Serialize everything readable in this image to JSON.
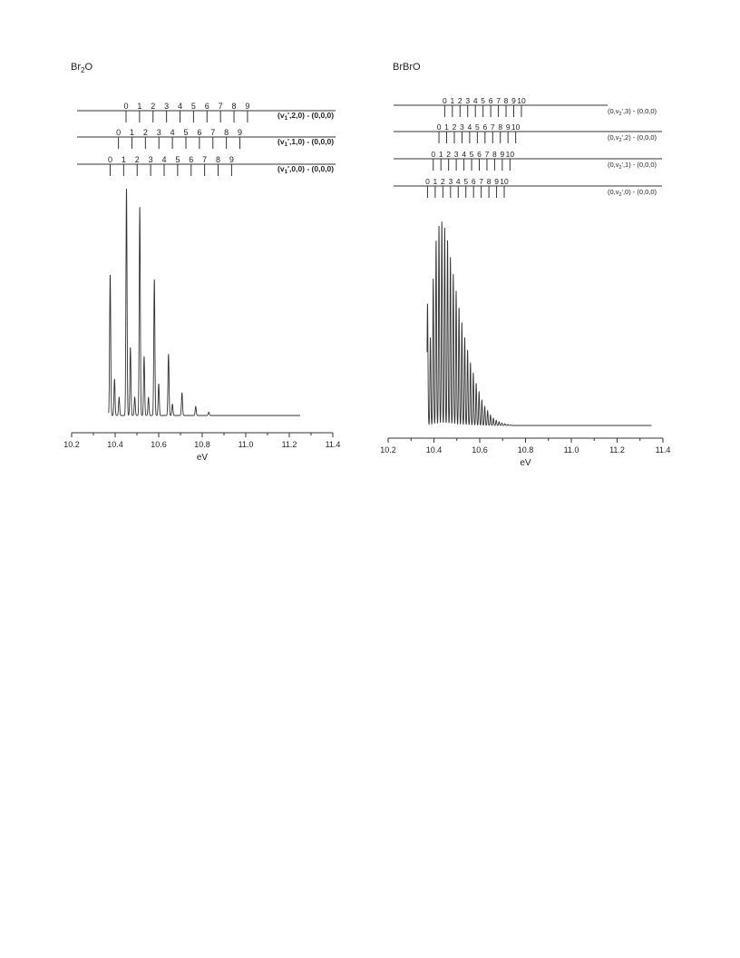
{
  "chart_data": [
    {
      "type": "line",
      "title": "Br2O",
      "title_parts": {
        "base": "Br",
        "sub": "2",
        "rest": "O"
      },
      "xlabel": "eV",
      "xlim": [
        10.2,
        11.4
      ],
      "xticks": [
        "10.2",
        "10.4",
        "10.6",
        "10.8",
        "11.0",
        "11.2",
        "11.4"
      ],
      "xtick_values": [
        10.2,
        10.4,
        10.6,
        10.8,
        11.0,
        11.2,
        11.4
      ],
      "grid": false,
      "baseline": 0.02,
      "spectrum_range": [
        10.37,
        11.25
      ],
      "peaks": [
        {
          "x": 10.377,
          "y": 0.62,
          "w": 0.0035
        },
        {
          "x": 10.397,
          "y": 0.16,
          "w": 0.0035
        },
        {
          "x": 10.418,
          "y": 0.08,
          "w": 0.0035
        },
        {
          "x": 10.452,
          "y": 1.0,
          "w": 0.0035
        },
        {
          "x": 10.47,
          "y": 0.3,
          "w": 0.0035
        },
        {
          "x": 10.49,
          "y": 0.08,
          "w": 0.0035
        },
        {
          "x": 10.513,
          "y": 0.92,
          "w": 0.0035
        },
        {
          "x": 10.533,
          "y": 0.26,
          "w": 0.0035
        },
        {
          "x": 10.553,
          "y": 0.08,
          "w": 0.0035
        },
        {
          "x": 10.58,
          "y": 0.6,
          "w": 0.0035
        },
        {
          "x": 10.6,
          "y": 0.14,
          "w": 0.0035
        },
        {
          "x": 10.645,
          "y": 0.27,
          "w": 0.0035
        },
        {
          "x": 10.663,
          "y": 0.05,
          "w": 0.0035
        },
        {
          "x": 10.707,
          "y": 0.1,
          "w": 0.0035
        },
        {
          "x": 10.77,
          "y": 0.04,
          "w": 0.0035
        },
        {
          "x": 10.83,
          "y": 0.015,
          "w": 0.0035
        }
      ],
      "progressions": [
        {
          "label": "(v1',2,0) - (0,0,0)",
          "tick_labels": [
            "0",
            "1",
            "2",
            "3",
            "4",
            "5",
            "6",
            "7",
            "8",
            "9"
          ],
          "start": 10.45,
          "step": 0.062
        },
        {
          "label": "(v1',1,0) - (0,0,0)",
          "tick_labels": [
            "0",
            "1",
            "2",
            "3",
            "4",
            "5",
            "6",
            "7",
            "8",
            "9"
          ],
          "start": 10.415,
          "step": 0.062
        },
        {
          "label": "(v1',0,0) - (0,0,0)",
          "tick_labels": [
            "0",
            "1",
            "2",
            "3",
            "4",
            "5",
            "6",
            "7",
            "8",
            "9"
          ],
          "start": 10.377,
          "step": 0.062
        }
      ]
    },
    {
      "type": "line",
      "title": "BrBrO",
      "xlabel": "eV",
      "xlim": [
        10.2,
        11.4
      ],
      "xticks": [
        "10.2",
        "10.4",
        "10.6",
        "10.8",
        "11.0",
        "11.2",
        "11.4"
      ],
      "xtick_values": [
        10.2,
        10.4,
        10.6,
        10.8,
        11.0,
        11.2,
        11.4
      ],
      "grid": false,
      "baseline": 0.0,
      "spectrum_range": [
        10.37,
        11.35
      ],
      "envelope_start": 10.372,
      "envelope_step": 0.0125,
      "envelope_peaks": 30,
      "envelope_heights": [
        0.58,
        0.42,
        0.7,
        0.88,
        0.95,
        0.97,
        0.94,
        0.88,
        0.8,
        0.72,
        0.64,
        0.56,
        0.49,
        0.42,
        0.36,
        0.3,
        0.25,
        0.2,
        0.16,
        0.12,
        0.09,
        0.07,
        0.05,
        0.035,
        0.025,
        0.018,
        0.012,
        0.008,
        0.005,
        0.003
      ],
      "progressions": [
        {
          "label": "(0,v2',3) - (0,0,0)",
          "tick_labels": [
            "0",
            "1",
            "2",
            "3",
            "4",
            "5",
            "6",
            "7",
            "8",
            "9",
            "10"
          ],
          "start": 10.447,
          "step": 0.0335
        },
        {
          "label": "(0,v2',2) - (0,0,0)",
          "tick_labels": [
            "0",
            "1",
            "2",
            "3",
            "4",
            "5",
            "6",
            "7",
            "8",
            "9",
            "10"
          ],
          "start": 10.422,
          "step": 0.0335
        },
        {
          "label": "(0,v2',1) - (0,0,0)",
          "tick_labels": [
            "0",
            "1",
            "2",
            "3",
            "4",
            "5",
            "6",
            "7",
            "8",
            "9",
            "10"
          ],
          "start": 10.397,
          "step": 0.0335
        },
        {
          "label": "(0,v2',0) - (0,0,0)",
          "tick_labels": [
            "0",
            "1",
            "2",
            "3",
            "4",
            "5",
            "6",
            "7",
            "8",
            "9",
            "10"
          ],
          "start": 10.372,
          "step": 0.0335
        }
      ]
    }
  ]
}
